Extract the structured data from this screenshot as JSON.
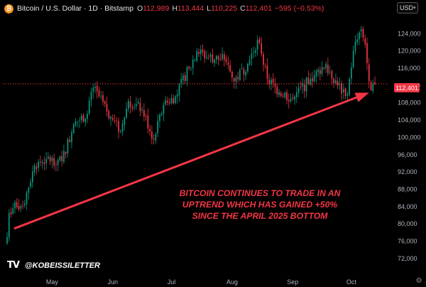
{
  "header": {
    "symbol": "Bitcoin / U.S. Dollar · 1D · Bitstamp",
    "o_label": "O",
    "o_value": "112,989",
    "h_label": "H",
    "h_value": "113,444",
    "l_label": "L",
    "l_value": "110,225",
    "c_label": "C",
    "c_value": "112,401",
    "change": "−595 (−0.53%)"
  },
  "currency": "USD",
  "price_tag": "112,401",
  "annotation": "BITCOIN CONTINUES TO TRADE IN AN UPTREND WHICH HAS GAINED +50% SINCE THE APRIL 2025 BOTTOM",
  "watermark": "@KOBEISSILETTER",
  "tv_logo": "TV",
  "colors": {
    "up": "#089981",
    "down": "#f23645",
    "annotation": "#f23645",
    "background": "#000000"
  },
  "icons": [
    "bitcoin-logo-icon",
    "chevron-down-icon",
    "tradingview-logo-icon",
    "settings-icon"
  ],
  "chart_data": {
    "type": "candlestick",
    "title": "Bitcoin / U.S. Dollar · 1D · Bitstamp",
    "ylim": [
      71000,
      127500
    ],
    "y_ticks": [
      72000,
      76000,
      80000,
      84000,
      88000,
      92000,
      96000,
      100000,
      104000,
      108000,
      112000,
      116000,
      120000,
      124000
    ],
    "y_tick_labels": [
      "72,000",
      "76,000",
      "80,000",
      "84,000",
      "88,000",
      "92,000",
      "96,000",
      "100,000",
      "104,000",
      "108,000",
      "112,000",
      "116,000",
      "120,000",
      "124,000"
    ],
    "x_ticks": [
      "May",
      "Jun",
      "Jul",
      "Aug",
      "Sep",
      "Oct"
    ],
    "x_tick_dates": [
      "2025-05-01",
      "2025-06-01",
      "2025-07-01",
      "2025-08-01",
      "2025-09-01",
      "2025-10-01"
    ],
    "x_range": [
      "2025-04-08",
      "2025-10-13"
    ],
    "last_price": 112401,
    "last_price_line": "dotted",
    "closes": [
      {
        "date": "2025-04-08",
        "close": 77000
      },
      {
        "date": "2025-04-09",
        "close": 82500
      },
      {
        "date": "2025-04-12",
        "close": 85000
      },
      {
        "date": "2025-04-16",
        "close": 84000
      },
      {
        "date": "2025-04-22",
        "close": 93500
      },
      {
        "date": "2025-04-28",
        "close": 95000
      },
      {
        "date": "2025-05-06",
        "close": 94500
      },
      {
        "date": "2025-05-12",
        "close": 103000
      },
      {
        "date": "2025-05-19",
        "close": 105500
      },
      {
        "date": "2025-05-22",
        "close": 111500
      },
      {
        "date": "2025-05-29",
        "close": 106000
      },
      {
        "date": "2025-06-05",
        "close": 101500
      },
      {
        "date": "2025-06-09",
        "close": 108500
      },
      {
        "date": "2025-06-16",
        "close": 106500
      },
      {
        "date": "2025-06-22",
        "close": 99500
      },
      {
        "date": "2025-06-27",
        "close": 107500
      },
      {
        "date": "2025-07-03",
        "close": 109500
      },
      {
        "date": "2025-07-10",
        "close": 116000
      },
      {
        "date": "2025-07-14",
        "close": 120000
      },
      {
        "date": "2025-07-20",
        "close": 118500
      },
      {
        "date": "2025-07-28",
        "close": 118000
      },
      {
        "date": "2025-08-02",
        "close": 113000
      },
      {
        "date": "2025-08-09",
        "close": 117000
      },
      {
        "date": "2025-08-14",
        "close": 122500
      },
      {
        "date": "2025-08-19",
        "close": 113500
      },
      {
        "date": "2025-08-25",
        "close": 110500
      },
      {
        "date": "2025-09-01",
        "close": 109000
      },
      {
        "date": "2025-09-10",
        "close": 113500
      },
      {
        "date": "2025-09-18",
        "close": 117000
      },
      {
        "date": "2025-09-24",
        "close": 112000
      },
      {
        "date": "2025-09-29",
        "close": 110000
      },
      {
        "date": "2025-10-02",
        "close": 120000
      },
      {
        "date": "2025-10-06",
        "close": 125000
      },
      {
        "date": "2025-10-08",
        "close": 121500
      },
      {
        "date": "2025-10-10",
        "close": 113000
      },
      {
        "date": "2025-10-11",
        "close": 111000
      },
      {
        "date": "2025-10-13",
        "close": 112401
      }
    ],
    "trendline": {
      "from": {
        "date": "2025-04-12",
        "price": 79000
      },
      "to": {
        "date": "2025-10-08",
        "price": 110000
      },
      "color": "#f23645",
      "arrow": true
    }
  }
}
